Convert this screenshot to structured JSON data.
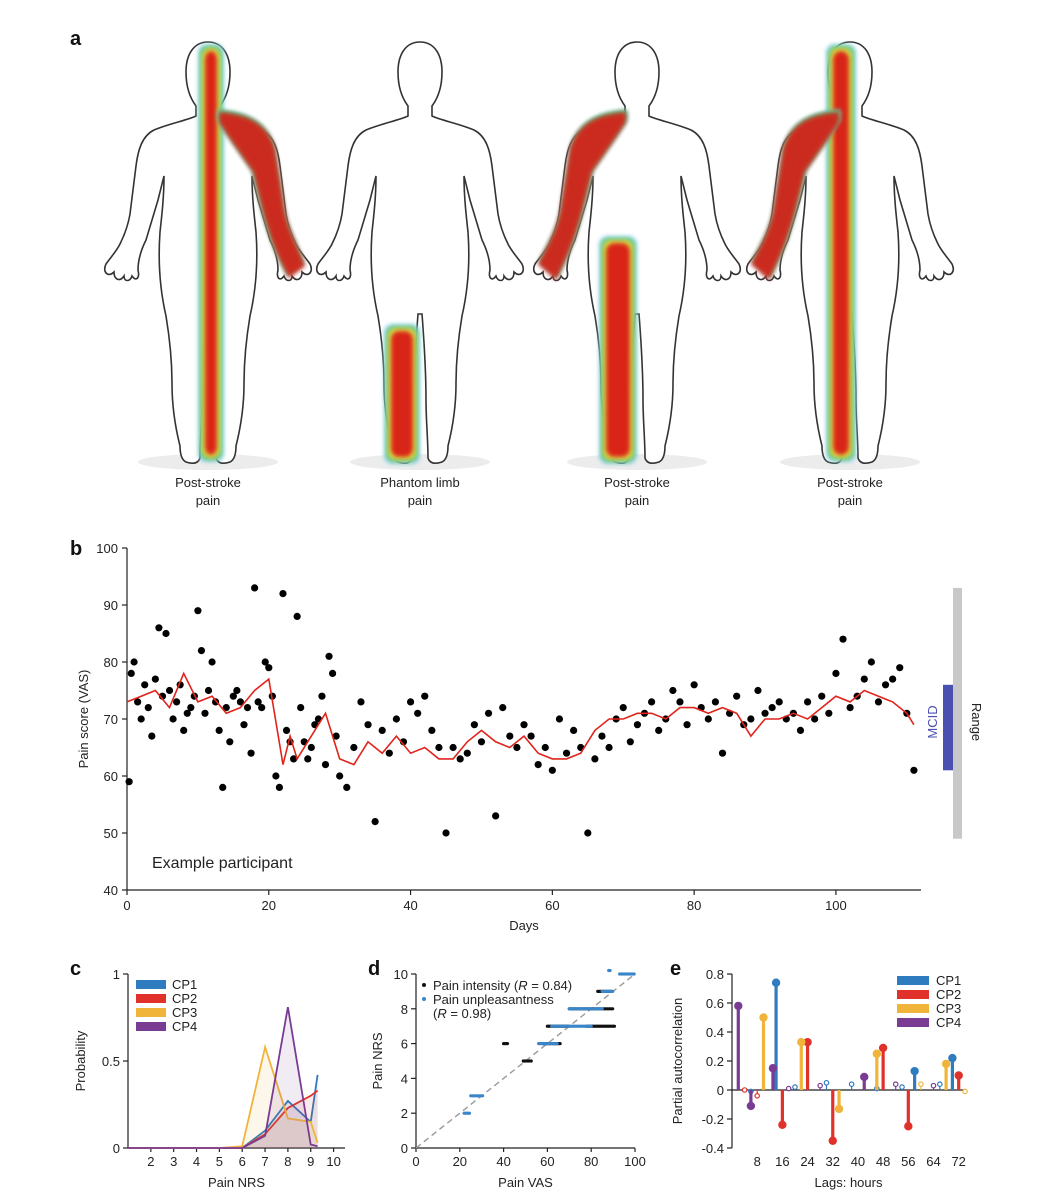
{
  "panels": {
    "a": {
      "letter": "a",
      "bodies": [
        {
          "label_line1": "Post-stroke",
          "label_line2": "pain",
          "region": "whole-right-side"
        },
        {
          "label_line1": "Phantom limb",
          "label_line2": "pain",
          "region": "lower-left-leg"
        },
        {
          "label_line1": "Post-stroke",
          "label_line2": "pain",
          "region": "right-arm-left-leg"
        },
        {
          "label_line1": "Post-stroke",
          "label_line2": "pain",
          "region": "whole-right-side-arm"
        }
      ],
      "heat_colors": [
        "#d91e18",
        "#f6e53a",
        "#4fbf6b",
        "#8fd0e8"
      ]
    },
    "b": {
      "letter": "b",
      "annotation": "Example participant",
      "mcid_label": "MCID",
      "range_label": "Range",
      "chart_data": {
        "type": "scatter",
        "xlabel": "Days",
        "ylabel": "Pain score (VAS)",
        "xlim": [
          0,
          112
        ],
        "ylim": [
          40,
          100
        ],
        "xticks": [
          0,
          20,
          40,
          60,
          80,
          100
        ],
        "yticks": [
          40,
          50,
          60,
          70,
          80,
          90,
          100
        ],
        "range_bar": [
          49,
          93
        ],
        "mcid_bar": [
          61,
          76
        ],
        "series": [
          {
            "kind": "points",
            "color": "#000000",
            "x": [
              0.3,
              0.6,
              1.0,
              1.5,
              2.0,
              2.5,
              3.0,
              3.5,
              4.0,
              4.5,
              5.0,
              5.5,
              6.0,
              6.5,
              7.0,
              7.5,
              8.0,
              8.5,
              9.0,
              9.5,
              10.0,
              10.5,
              11.0,
              11.5,
              12.0,
              12.5,
              13.0,
              13.5,
              14.0,
              14.5,
              15.0,
              15.5,
              16.0,
              16.5,
              17.0,
              17.5,
              18.0,
              18.5,
              19.0,
              19.5,
              20.0,
              20.5,
              21.0,
              21.5,
              22.0,
              22.5,
              23.0,
              23.5,
              24.0,
              24.5,
              25.0,
              25.5,
              26.0,
              26.5,
              27.0,
              27.5,
              28.0,
              28.5,
              29.0,
              29.5,
              30.0,
              31.0,
              32.0,
              33.0,
              34.0,
              35.0,
              36.0,
              37.0,
              38.0,
              39.0,
              40.0,
              41.0,
              42.0,
              43.0,
              44.0,
              45.0,
              46.0,
              47.0,
              48.0,
              49.0,
              50.0,
              51.0,
              52.0,
              53.0,
              54.0,
              55.0,
              56.0,
              57.0,
              58.0,
              59.0,
              60.0,
              61.0,
              62.0,
              63.0,
              64.0,
              65.0,
              66.0,
              67.0,
              68.0,
              69.0,
              70.0,
              71.0,
              72.0,
              73.0,
              74.0,
              75.0,
              76.0,
              77.0,
              78.0,
              79.0,
              80.0,
              81.0,
              82.0,
              83.0,
              84.0,
              85.0,
              86.0,
              87.0,
              88.0,
              89.0,
              90.0,
              91.0,
              92.0,
              93.0,
              94.0,
              95.0,
              96.0,
              97.0,
              98.0,
              99.0,
              100.0,
              101.0,
              102.0,
              103.0,
              104.0,
              105.0,
              106.0,
              107.0,
              108.0,
              109.0,
              110.0,
              111.0
            ],
            "y": [
              59,
              78,
              80,
              73,
              70,
              76,
              72,
              67,
              77,
              86,
              74,
              85,
              75,
              70,
              73,
              76,
              68,
              71,
              72,
              74,
              89,
              82,
              71,
              75,
              80,
              73,
              68,
              58,
              72,
              66,
              74,
              75,
              73,
              69,
              72,
              64,
              93,
              73,
              72,
              80,
              79,
              74,
              60,
              58,
              92,
              68,
              66,
              63,
              88,
              72,
              66,
              63,
              65,
              69,
              70,
              74,
              62,
              81,
              78,
              67,
              60,
              58,
              65,
              73,
              69,
              52,
              68,
              64,
              70,
              66,
              73,
              71,
              74,
              68,
              65,
              50,
              65,
              63,
              64,
              69,
              66,
              71,
              53,
              72,
              67,
              65,
              69,
              67,
              62,
              65,
              61,
              70,
              64,
              68,
              65,
              50,
              63,
              67,
              65,
              70,
              72,
              66,
              69,
              71,
              73,
              68,
              70,
              75,
              73,
              69,
              76,
              72,
              70,
              73,
              64,
              71,
              74,
              69,
              70,
              75,
              71,
              72,
              73,
              70,
              71,
              68,
              73,
              70,
              74,
              71,
              78,
              84,
              72,
              74,
              77,
              80,
              73,
              76,
              77,
              79,
              71,
              61
            ]
          },
          {
            "kind": "line",
            "color": "#e0241c",
            "x": [
              0,
              2,
              4,
              6,
              8,
              10,
              12,
              14,
              16,
              18,
              20,
              22,
              23,
              24,
              26,
              28,
              30,
              32,
              34,
              36,
              38,
              40,
              42,
              44,
              46,
              48,
              50,
              52,
              54,
              56,
              58,
              60,
              62,
              64,
              66,
              68,
              70,
              72,
              74,
              76,
              78,
              80,
              82,
              84,
              86,
              88,
              90,
              92,
              94,
              96,
              98,
              100,
              102,
              104,
              106,
              108,
              110,
              111
            ],
            "y": [
              73,
              74,
              75,
              72,
              78,
              73,
              74,
              71,
              72,
              75,
              77,
              62,
              67,
              63,
              67,
              71,
              63,
              62,
              66,
              64,
              67,
              64,
              65,
              63,
              63,
              66,
              68,
              66,
              65,
              67,
              64,
              63,
              63,
              64,
              68,
              70,
              70,
              71,
              71,
              70,
              72,
              72,
              71,
              72,
              71,
              67,
              70,
              70,
              71,
              70,
              72,
              74,
              73,
              75,
              74,
              73,
              71,
              69
            ]
          }
        ]
      }
    },
    "c": {
      "letter": "c",
      "chart_data": {
        "type": "line",
        "xlabel": "Pain NRS",
        "ylabel": "Probability",
        "xlim": [
          1,
          10.5
        ],
        "ylim": [
          0,
          1
        ],
        "xticks": [
          2,
          3,
          4,
          5,
          6,
          7,
          8,
          9,
          10
        ],
        "yticks": [
          0,
          0.5,
          1
        ],
        "ytick_labels": [
          "0",
          "0.5",
          "1"
        ],
        "categories": [
          1,
          2,
          3,
          4,
          5,
          6,
          7,
          8,
          9,
          9.3
        ],
        "series": [
          {
            "name": "CP1",
            "color": "#2f7bbf",
            "values": [
              0,
              0,
              0,
              0,
              0,
              0,
              0.1,
              0.27,
              0.15,
              0.42
            ]
          },
          {
            "name": "CP2",
            "color": "#e0312b",
            "values": [
              0,
              0,
              0,
              0,
              0,
              0,
              0.08,
              0.23,
              0.3,
              0.33
            ]
          },
          {
            "name": "CP3",
            "color": "#f0b43a",
            "values": [
              0,
              0,
              0,
              0,
              0,
              0.01,
              0.58,
              0.17,
              0.15,
              0.03
            ]
          },
          {
            "name": "CP4",
            "color": "#7a3c92",
            "values": [
              0,
              0,
              0,
              0,
              0,
              0,
              0.07,
              0.81,
              0.02,
              0.01
            ]
          }
        ]
      }
    },
    "d": {
      "letter": "d",
      "legend_intensity": "Pain intensity (",
      "legend_intensity_r": "R",
      "legend_intensity_val": " = 0.84)",
      "legend_unpleasant_1": "Pain unpleasantness",
      "legend_unpleasant_2": "(",
      "legend_unpleasant_r": "R",
      "legend_unpleasant_val": " = 0.98)",
      "chart_data": {
        "type": "scatter",
        "xlabel": "Pain VAS",
        "ylabel": "Pain NRS",
        "xlim": [
          0,
          100
        ],
        "ylim": [
          0,
          10
        ],
        "xticks": [
          0,
          20,
          40,
          60,
          80,
          100
        ],
        "yticks": [
          0,
          2,
          4,
          6,
          8,
          10
        ],
        "series": [
          {
            "kind": "intensity-clusters",
            "color": "#111111",
            "clusters": [
              [
                49,
                53,
                5
              ],
              [
                58,
                66,
                6
              ],
              [
                60,
                70,
                7
              ],
              [
                70,
                90,
                8
              ],
              [
                78,
                91,
                7
              ],
              [
                83,
                89,
                9
              ],
              [
                40,
                42,
                6
              ]
            ]
          },
          {
            "kind": "unpleasant-clusters",
            "color": "#3a86c8",
            "clusters": [
              [
                22,
                25,
                2
              ],
              [
                25,
                31,
                3
              ],
              [
                56,
                65,
                6
              ],
              [
                62,
                80,
                7
              ],
              [
                70,
                85,
                8
              ],
              [
                85,
                90,
                9
              ],
              [
                93,
                100,
                10
              ],
              [
                88,
                89,
                10.2
              ]
            ]
          }
        ]
      }
    },
    "e": {
      "letter": "e",
      "chart_data": {
        "type": "bar",
        "xlabel": "Lags: hours",
        "ylabel": "Partial autocorrelation",
        "xlim": [
          0,
          74
        ],
        "ylim": [
          -0.4,
          0.8
        ],
        "xticks": [
          8,
          16,
          24,
          32,
          40,
          48,
          56,
          64,
          72
        ],
        "yticks": [
          -0.4,
          -0.2,
          0,
          0.2,
          0.4,
          0.6,
          0.8
        ],
        "series": [
          {
            "name": "CP1",
            "color": "#2f7bbf",
            "stems": [
              [
                6,
                -0.01
              ],
              [
                14,
                0.74
              ],
              [
                20,
                0.02
              ],
              [
                30,
                0.05
              ],
              [
                38,
                0.04
              ],
              [
                46,
                0.01
              ],
              [
                54,
                0.02
              ],
              [
                58,
                0.13
              ],
              [
                66,
                0.04
              ],
              [
                70,
                0.22
              ]
            ]
          },
          {
            "name": "CP2",
            "color": "#e0312b",
            "stems": [
              [
                4,
                0.0
              ],
              [
                8,
                -0.04
              ],
              [
                16,
                -0.24
              ],
              [
                24,
                0.33
              ],
              [
                32,
                -0.35
              ],
              [
                48,
                0.29
              ],
              [
                56,
                -0.25
              ],
              [
                72,
                0.1
              ]
            ]
          },
          {
            "name": "CP3",
            "color": "#f0b43a",
            "stems": [
              [
                10,
                0.5
              ],
              [
                22,
                0.33
              ],
              [
                34,
                -0.13
              ],
              [
                46,
                0.25
              ],
              [
                60,
                0.04
              ],
              [
                68,
                0.18
              ],
              [
                74,
                -0.01
              ]
            ]
          },
          {
            "name": "CP4",
            "color": "#7a3c92",
            "stems": [
              [
                2,
                0.58
              ],
              [
                6,
                -0.11
              ],
              [
                13,
                0.15
              ],
              [
                18,
                0.01
              ],
              [
                28,
                0.03
              ],
              [
                42,
                0.09
              ],
              [
                52,
                0.04
              ],
              [
                64,
                0.03
              ]
            ]
          }
        ]
      }
    }
  }
}
